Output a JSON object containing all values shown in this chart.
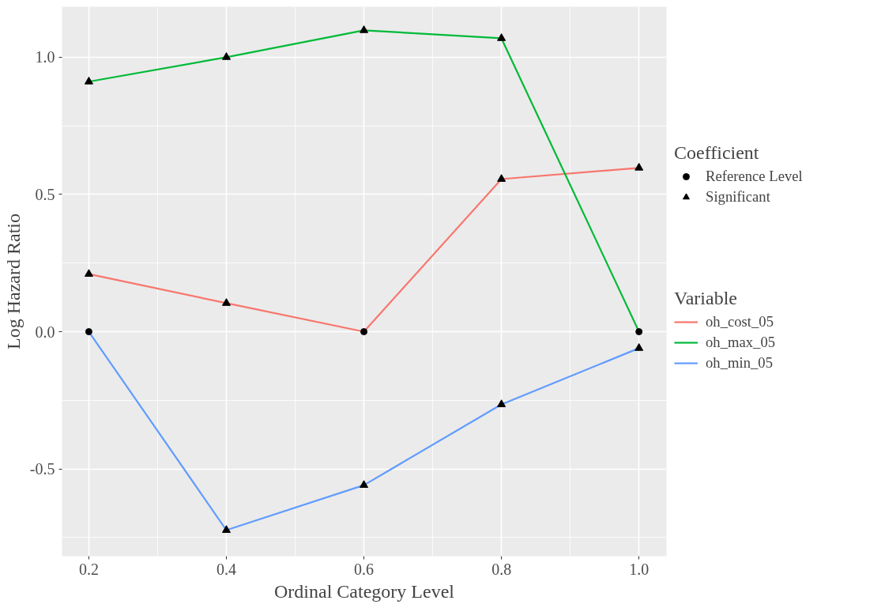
{
  "chart_data": {
    "type": "line",
    "xlabel": "Ordinal Category Level",
    "ylabel": "Log Hazard Ratio",
    "legend_title": [
      "Coefficient",
      "Variable"
    ],
    "x": [
      0.2,
      0.4,
      0.6,
      0.8,
      1.0
    ],
    "series": [
      {
        "name": "oh_cost_05",
        "color": "#f8766d",
        "values": [
          0.21,
          0.104,
          0,
          0.556,
          0.597
        ]
      },
      {
        "name": "oh_max_05",
        "color": "#00ba38",
        "values": [
          0.911,
          1.0,
          1.098,
          1.069,
          0
        ]
      },
      {
        "name": "oh_min_05",
        "color": "#619cff",
        "values": [
          0,
          -0.723,
          -0.559,
          -0.265,
          -0.06
        ]
      },
      {
        "name": "Reference Level",
        "type": "scatter",
        "marker": "circle",
        "color": "#000000",
        "x": [
          0.2,
          0.6,
          1.0
        ],
        "values": [
          0,
          0,
          0
        ]
      },
      {
        "name": "Significant",
        "type": "scatter",
        "marker": "triangle",
        "color": "#000000",
        "x": [
          0.2,
          0.2,
          0.4,
          0.4,
          0.4,
          0.6,
          0.6,
          0.8,
          0.8,
          0.8,
          1.0,
          1.0
        ],
        "values": [
          0.21,
          0.911,
          0.104,
          1.0,
          -0.723,
          1.098,
          -0.559,
          0.556,
          1.069,
          -0.265,
          0.597,
          -0.06
        ]
      }
    ],
    "xlim": [
      0.161,
      1.04
    ],
    "ylim": [
      -0.818,
      1.184
    ],
    "xticks": [
      0.2,
      0.4,
      0.6,
      0.8,
      {
        "value": 1.0,
        "label": "1.0"
      }
    ],
    "yticks": [
      {
        "value": -0.5,
        "label": "-0.5"
      },
      {
        "value": 0,
        "label": "0.0"
      },
      {
        "value": 0.5,
        "label": "0.5"
      },
      {
        "value": 1.0,
        "label": "1.0"
      }
    ],
    "grid": true,
    "legend": "right",
    "line_style": "solid"
  }
}
